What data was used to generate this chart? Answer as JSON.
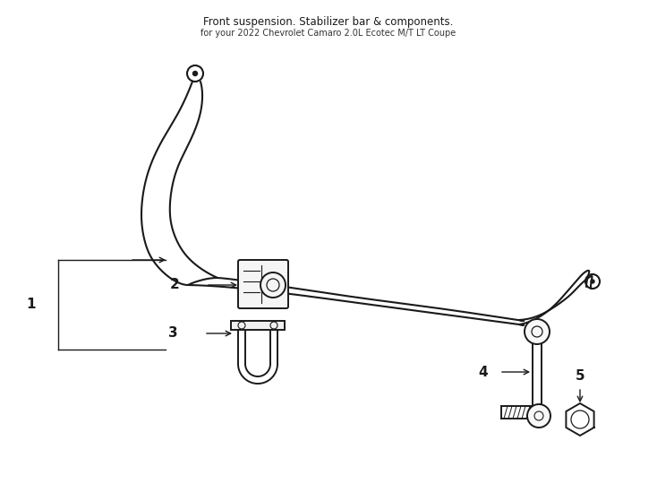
{
  "bg_color": "#ffffff",
  "line_color": "#1a1a1a",
  "lw": 1.4,
  "fig_width": 7.34,
  "fig_height": 5.4,
  "title": "Front suspension. Stabilizer bar & components.",
  "subtitle": "for your 2022 Chevrolet Camaro 2.0L Ecotec M/T LT Coupe"
}
